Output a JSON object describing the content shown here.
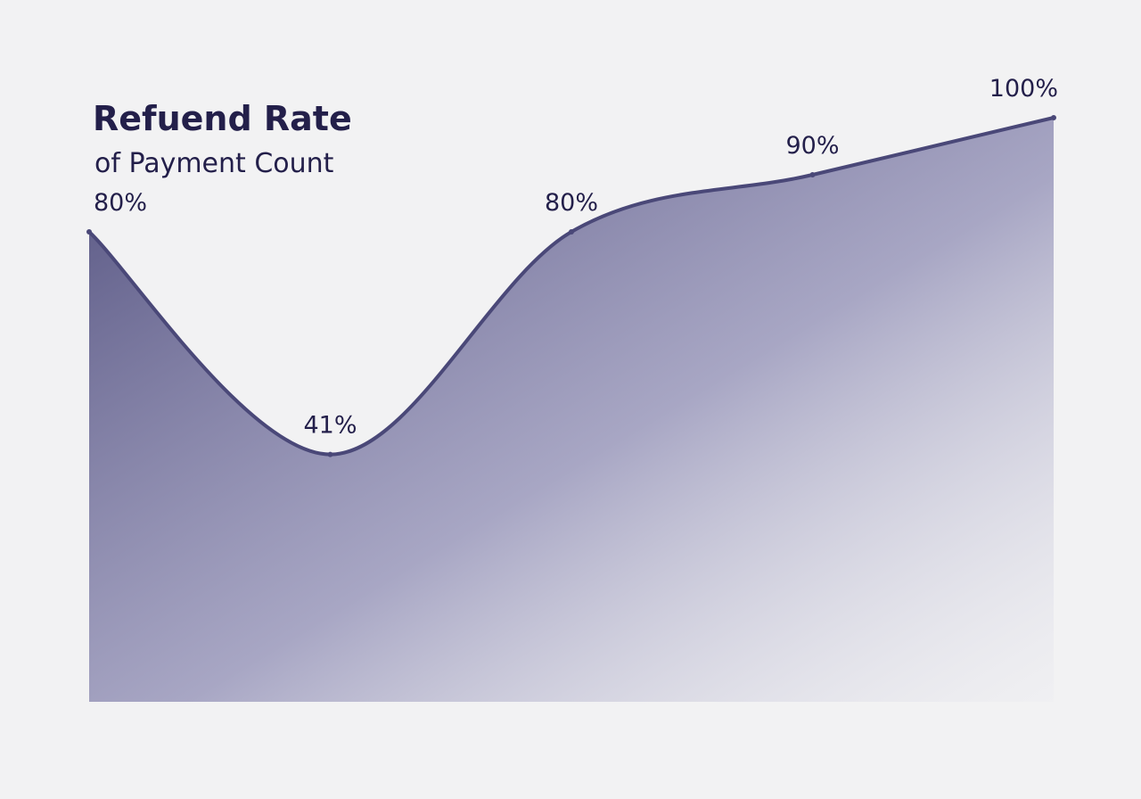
{
  "chart_data": {
    "type": "area",
    "title": "Refuend Rate",
    "subtitle": "of Payment Count",
    "values": [
      80,
      41,
      80,
      90,
      100
    ],
    "value_labels": [
      "80%",
      "41%",
      "80%",
      "90%",
      "100%"
    ],
    "color": "#4a4878"
  }
}
